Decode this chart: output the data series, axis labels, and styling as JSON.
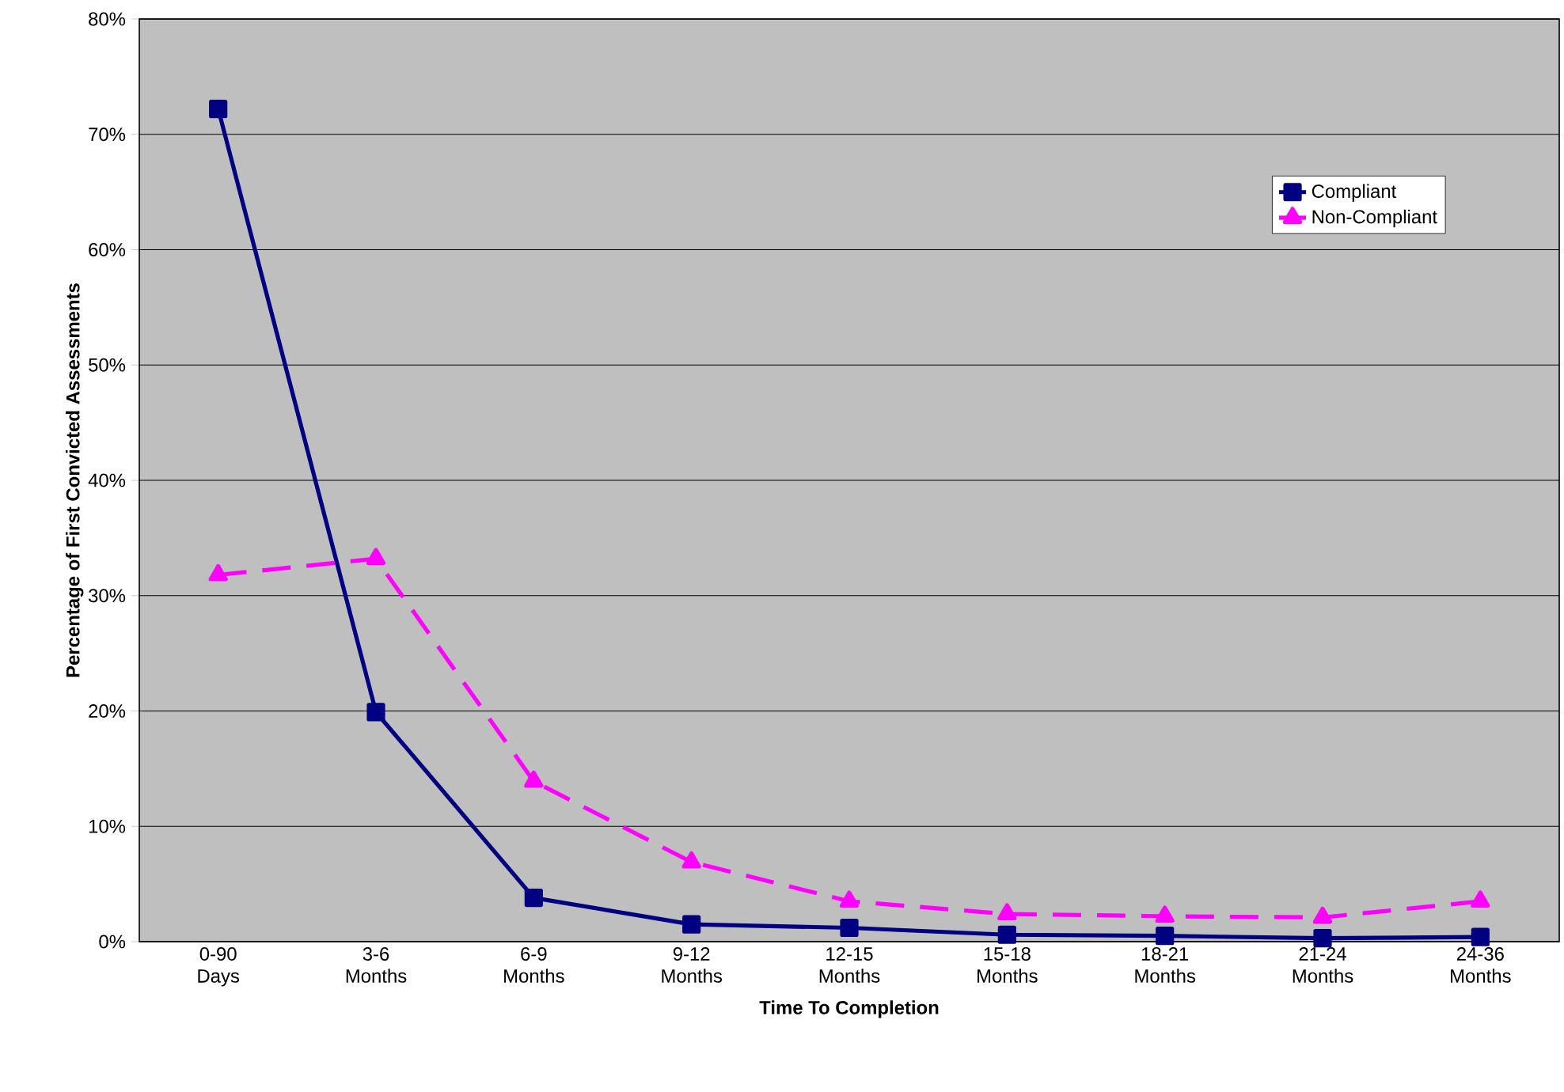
{
  "chart_data": {
    "type": "line",
    "xlabel": "Time To Completion",
    "ylabel": "Percentage of First Convicted Assessments",
    "categories": [
      "0-90 Days",
      "3-6 Months",
      "6-9 Months",
      "9-12 Months",
      "12-15 Months",
      "15-18 Months",
      "18-21 Months",
      "21-24 Months",
      "24-36 Months"
    ],
    "series": [
      {
        "name": "Compliant",
        "color": "#000080",
        "marker": "square",
        "line_style": "solid",
        "values": [
          72.2,
          19.9,
          3.8,
          1.5,
          1.2,
          0.6,
          0.5,
          0.3,
          0.4
        ]
      },
      {
        "name": "Non-Compliant",
        "color": "#ff00ff",
        "marker": "triangle",
        "line_style": "dashed",
        "values": [
          31.8,
          33.2,
          13.9,
          6.9,
          3.5,
          2.4,
          2.2,
          2.1,
          3.5
        ]
      }
    ],
    "ylim": [
      0,
      80
    ],
    "yticks": [
      {
        "value": 0,
        "label": "0%"
      },
      {
        "value": 10,
        "label": "10%"
      },
      {
        "value": 20,
        "label": "20%"
      },
      {
        "value": 30,
        "label": "30%"
      },
      {
        "value": 40,
        "label": "40%"
      },
      {
        "value": 50,
        "label": "50%"
      },
      {
        "value": 60,
        "label": "60%"
      },
      {
        "value": 70,
        "label": "70%"
      },
      {
        "value": 80,
        "label": "80%"
      }
    ],
    "grid": "y",
    "legend": "top right"
  }
}
